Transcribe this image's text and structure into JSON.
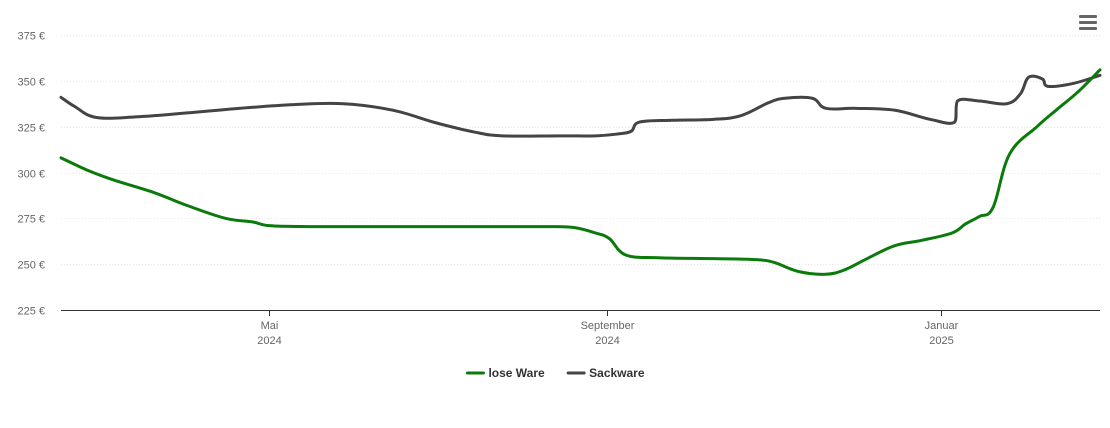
{
  "chart_data": {
    "type": "line",
    "title": "",
    "xlabel": "",
    "ylabel": "",
    "x_axis_type": "datetime",
    "x_range": [
      "2024-02-15",
      "2025-02-28"
    ],
    "ylim": [
      225,
      375
    ],
    "y_ticks": [
      225,
      250,
      275,
      300,
      325,
      350,
      375
    ],
    "y_tick_labels": [
      "225 €",
      "250 €",
      "275 €",
      "300 €",
      "325 €",
      "350 €",
      "375 €"
    ],
    "x_ticks": [
      {
        "date": "2024-05-01",
        "label_month": "Mai",
        "label_year": "2024"
      },
      {
        "date": "2024-09-01",
        "label_month": "September",
        "label_year": "2024"
      },
      {
        "date": "2025-01-01",
        "label_month": "Januar",
        "label_year": "2025"
      }
    ],
    "grid": true,
    "legend_position": "bottom-center",
    "series": [
      {
        "name": "lose Ware",
        "color": "#0a7a0a",
        "points": [
          [
            "2024-02-15",
            308
          ],
          [
            "2024-02-25",
            301
          ],
          [
            "2024-03-05",
            296
          ],
          [
            "2024-03-20",
            289
          ],
          [
            "2024-04-01",
            282
          ],
          [
            "2024-04-15",
            275
          ],
          [
            "2024-04-25",
            273
          ],
          [
            "2024-05-01",
            271
          ],
          [
            "2024-05-15",
            270.5
          ],
          [
            "2024-06-15",
            270.5
          ],
          [
            "2024-07-15",
            270.5
          ],
          [
            "2024-08-10",
            270.5
          ],
          [
            "2024-08-20",
            270
          ],
          [
            "2024-08-28",
            267
          ],
          [
            "2024-09-02",
            264
          ],
          [
            "2024-09-08",
            255
          ],
          [
            "2024-09-20",
            253.5
          ],
          [
            "2024-10-10",
            253
          ],
          [
            "2024-10-25",
            252.5
          ],
          [
            "2024-11-01",
            251
          ],
          [
            "2024-11-10",
            246
          ],
          [
            "2024-11-20",
            244.5
          ],
          [
            "2024-11-27",
            247
          ],
          [
            "2024-12-05",
            253
          ],
          [
            "2024-12-15",
            260
          ],
          [
            "2024-12-25",
            263
          ],
          [
            "2025-01-05",
            267
          ],
          [
            "2025-01-10",
            272
          ],
          [
            "2025-01-15",
            276
          ],
          [
            "2025-01-20",
            281
          ],
          [
            "2025-01-26",
            310
          ],
          [
            "2025-02-05",
            325
          ],
          [
            "2025-02-12",
            334
          ],
          [
            "2025-02-20",
            344
          ],
          [
            "2025-02-28",
            356
          ]
        ]
      },
      {
        "name": "Sackware",
        "color": "#444444",
        "points": [
          [
            "2024-02-15",
            341
          ],
          [
            "2024-02-20",
            336
          ],
          [
            "2024-02-28",
            330
          ],
          [
            "2024-03-15",
            330.5
          ],
          [
            "2024-04-01",
            332.5
          ],
          [
            "2024-04-20",
            335
          ],
          [
            "2024-05-10",
            337
          ],
          [
            "2024-05-28",
            337.5
          ],
          [
            "2024-06-15",
            334
          ],
          [
            "2024-07-01",
            327
          ],
          [
            "2024-07-15",
            322
          ],
          [
            "2024-07-25",
            320
          ],
          [
            "2024-08-15",
            320
          ],
          [
            "2024-08-28",
            320
          ],
          [
            "2024-09-05",
            321
          ],
          [
            "2024-09-10",
            322.5
          ],
          [
            "2024-09-13",
            327.5
          ],
          [
            "2024-09-25",
            328.5
          ],
          [
            "2024-10-10",
            329
          ],
          [
            "2024-10-20",
            331
          ],
          [
            "2024-10-30",
            338
          ],
          [
            "2024-11-05",
            340.5
          ],
          [
            "2024-11-15",
            340.5
          ],
          [
            "2024-11-20",
            335
          ],
          [
            "2024-12-01",
            335
          ],
          [
            "2024-12-15",
            334
          ],
          [
            "2024-12-28",
            329
          ],
          [
            "2025-01-06",
            327.5
          ],
          [
            "2025-01-07",
            339
          ],
          [
            "2025-01-15",
            339
          ],
          [
            "2025-01-25",
            337.5
          ],
          [
            "2025-01-30",
            343
          ],
          [
            "2025-02-02",
            352
          ],
          [
            "2025-02-07",
            351
          ],
          [
            "2025-02-09",
            347
          ],
          [
            "2025-02-18",
            348.5
          ],
          [
            "2025-02-28",
            353
          ]
        ]
      }
    ]
  }
}
